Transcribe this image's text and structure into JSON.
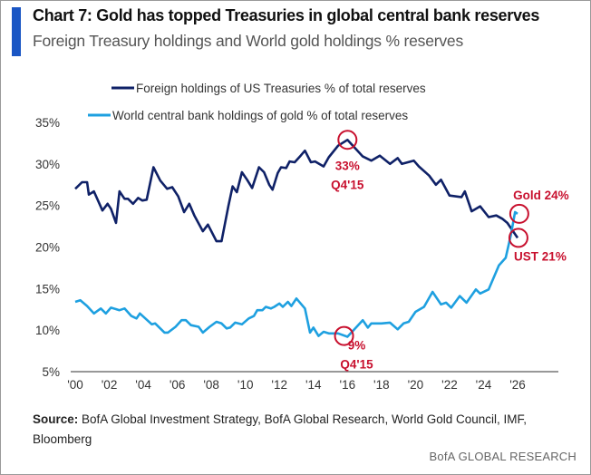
{
  "header": {
    "title": "Chart 7: Gold has topped Treasuries in global central bank reserves",
    "subtitle": "Foreign Treasury holdings and World gold holdings % reserves",
    "accent_color": "#1a56c4"
  },
  "footer": {
    "source_label": "Source:",
    "source_text": " BofA Global Investment Strategy, BofA Global Research, World Gold Council, IMF, Bloomberg",
    "brand": "BofA GLOBAL RESEARCH"
  },
  "chart_data": {
    "type": "line",
    "title": "Chart 7: Gold has topped Treasuries in global central bank reserves",
    "subtitle": "Foreign Treasury holdings and World gold holdings % reserves",
    "xlabel": "",
    "ylabel": "",
    "xlim": [
      2000,
      2026
    ],
    "ylim": [
      5,
      35
    ],
    "x_ticks": [
      2000,
      2002,
      2004,
      2006,
      2008,
      2010,
      2012,
      2014,
      2016,
      2018,
      2020,
      2022,
      2024,
      2026
    ],
    "x_tick_labels": [
      "'00",
      "'02",
      "'04",
      "'06",
      "'08",
      "'10",
      "'12",
      "'14",
      "'16",
      "'18",
      "'20",
      "'22",
      "'24",
      "'26"
    ],
    "y_ticks": [
      5,
      10,
      15,
      20,
      25,
      30,
      35
    ],
    "y_tick_labels": [
      "5%",
      "10%",
      "15%",
      "20%",
      "25%",
      "30%",
      "35%"
    ],
    "grid": false,
    "legend_placement": "top-center",
    "series": [
      {
        "name": "Foreign holdings of US Treasuries % of total reserves",
        "color": "#0f2167",
        "points": [
          [
            2000.0,
            27.0
          ],
          [
            2000.4,
            27.8
          ],
          [
            2000.7,
            27.8
          ],
          [
            2000.8,
            26.3
          ],
          [
            2001.1,
            26.7
          ],
          [
            2001.6,
            24.4
          ],
          [
            2001.9,
            25.2
          ],
          [
            2002.1,
            24.6
          ],
          [
            2002.4,
            22.9
          ],
          [
            2002.6,
            26.7
          ],
          [
            2002.9,
            25.8
          ],
          [
            2003.1,
            25.8
          ],
          [
            2003.4,
            25.2
          ],
          [
            2003.7,
            25.9
          ],
          [
            2003.95,
            25.6
          ],
          [
            2004.2,
            25.7
          ],
          [
            2004.6,
            29.6
          ],
          [
            2005.0,
            28.0
          ],
          [
            2005.4,
            27.0
          ],
          [
            2005.7,
            27.2
          ],
          [
            2006.05,
            26.1
          ],
          [
            2006.4,
            24.2
          ],
          [
            2006.7,
            25.2
          ],
          [
            2007.0,
            23.8
          ],
          [
            2007.5,
            21.9
          ],
          [
            2007.8,
            22.7
          ],
          [
            2008.3,
            20.7
          ],
          [
            2008.6,
            20.7
          ],
          [
            2009.0,
            24.9
          ],
          [
            2009.25,
            27.3
          ],
          [
            2009.5,
            26.6
          ],
          [
            2009.8,
            29.0
          ],
          [
            2010.1,
            28.1
          ],
          [
            2010.4,
            27.1
          ],
          [
            2010.8,
            29.6
          ],
          [
            2011.1,
            29.0
          ],
          [
            2011.4,
            27.5
          ],
          [
            2011.6,
            26.9
          ],
          [
            2011.9,
            28.9
          ],
          [
            2012.1,
            29.6
          ],
          [
            2012.4,
            29.5
          ],
          [
            2012.6,
            30.3
          ],
          [
            2012.9,
            30.2
          ],
          [
            2013.25,
            31.0
          ],
          [
            2013.5,
            31.6
          ],
          [
            2013.85,
            30.2
          ],
          [
            2014.1,
            30.3
          ],
          [
            2014.6,
            29.7
          ],
          [
            2014.9,
            30.8
          ],
          [
            2015.45,
            32.2
          ],
          [
            2016.0,
            32.9
          ],
          [
            2016.9,
            30.9
          ],
          [
            2017.4,
            30.4
          ],
          [
            2017.9,
            31.0
          ],
          [
            2018.5,
            30.0
          ],
          [
            2018.95,
            30.7
          ],
          [
            2019.2,
            30.0
          ],
          [
            2019.9,
            30.4
          ],
          [
            2020.2,
            29.7
          ],
          [
            2020.8,
            28.6
          ],
          [
            2021.2,
            27.5
          ],
          [
            2021.5,
            28.1
          ],
          [
            2022.0,
            26.2
          ],
          [
            2022.7,
            26.0
          ],
          [
            2022.9,
            26.7
          ],
          [
            2023.3,
            24.3
          ],
          [
            2023.8,
            24.9
          ],
          [
            2024.3,
            23.6
          ],
          [
            2024.75,
            23.8
          ],
          [
            2025.1,
            23.4
          ],
          [
            2025.4,
            22.9
          ],
          [
            2026.0,
            21.1
          ]
        ]
      },
      {
        "name": "World central bank holdings of gold % of total reserves",
        "color": "#1ea0e0",
        "points": [
          [
            2000.0,
            13.4
          ],
          [
            2000.3,
            13.6
          ],
          [
            2000.7,
            12.9
          ],
          [
            2001.1,
            12.0
          ],
          [
            2001.5,
            12.6
          ],
          [
            2001.8,
            12.0
          ],
          [
            2002.1,
            12.7
          ],
          [
            2002.6,
            12.4
          ],
          [
            2002.9,
            12.6
          ],
          [
            2003.3,
            11.7
          ],
          [
            2003.6,
            11.4
          ],
          [
            2003.8,
            12.0
          ],
          [
            2004.5,
            10.7
          ],
          [
            2004.7,
            10.8
          ],
          [
            2005.25,
            9.7
          ],
          [
            2005.45,
            9.7
          ],
          [
            2005.9,
            10.4
          ],
          [
            2006.25,
            11.2
          ],
          [
            2006.5,
            11.2
          ],
          [
            2006.8,
            10.6
          ],
          [
            2007.25,
            10.4
          ],
          [
            2007.5,
            9.7
          ],
          [
            2007.9,
            10.4
          ],
          [
            2008.3,
            11.0
          ],
          [
            2008.6,
            10.8
          ],
          [
            2008.9,
            10.2
          ],
          [
            2009.1,
            10.3
          ],
          [
            2009.4,
            10.9
          ],
          [
            2009.8,
            10.7
          ],
          [
            2010.2,
            11.4
          ],
          [
            2010.5,
            11.7
          ],
          [
            2010.7,
            12.4
          ],
          [
            2011.0,
            12.4
          ],
          [
            2011.2,
            12.8
          ],
          [
            2011.5,
            12.6
          ],
          [
            2011.7,
            12.8
          ],
          [
            2012.0,
            13.2
          ],
          [
            2012.2,
            12.8
          ],
          [
            2012.5,
            13.4
          ],
          [
            2012.7,
            12.9
          ],
          [
            2013.0,
            13.8
          ],
          [
            2013.5,
            12.6
          ],
          [
            2013.8,
            9.7
          ],
          [
            2014.0,
            10.3
          ],
          [
            2014.3,
            9.3
          ],
          [
            2014.6,
            9.8
          ],
          [
            2014.9,
            9.6
          ],
          [
            2015.45,
            9.6
          ],
          [
            2016.0,
            9.2
          ],
          [
            2016.5,
            10.3
          ],
          [
            2016.9,
            11.2
          ],
          [
            2017.2,
            10.3
          ],
          [
            2017.4,
            10.8
          ],
          [
            2018.0,
            10.8
          ],
          [
            2018.5,
            10.9
          ],
          [
            2018.95,
            10.1
          ],
          [
            2019.3,
            10.8
          ],
          [
            2019.6,
            11.0
          ],
          [
            2020.0,
            12.2
          ],
          [
            2020.5,
            12.8
          ],
          [
            2021.0,
            14.6
          ],
          [
            2021.5,
            13.1
          ],
          [
            2021.8,
            13.3
          ],
          [
            2022.1,
            12.7
          ],
          [
            2022.6,
            14.1
          ],
          [
            2023.0,
            13.3
          ],
          [
            2023.55,
            14.9
          ],
          [
            2023.8,
            14.4
          ],
          [
            2024.3,
            14.9
          ],
          [
            2024.9,
            17.8
          ],
          [
            2025.3,
            18.7
          ],
          [
            2025.6,
            21.4
          ],
          [
            2025.85,
            24.2
          ],
          [
            2026.0,
            24.0
          ]
        ]
      }
    ],
    "annotations": [
      {
        "x": 2016.0,
        "y": 32.9,
        "lines": [
          "33%",
          "Q4'15"
        ],
        "position": "below"
      },
      {
        "x": 2015.8,
        "y": 9.3,
        "lines": [
          "9%",
          "Q4'15"
        ],
        "position": "below-right"
      },
      {
        "x": 2026.1,
        "y": 24.0,
        "lines": [
          "Gold 24%"
        ],
        "position": "above-right"
      },
      {
        "x": 2026.05,
        "y": 21.1,
        "lines": [
          "UST 21%"
        ],
        "position": "below-right"
      }
    ],
    "annotation_color": "#c8102e"
  }
}
